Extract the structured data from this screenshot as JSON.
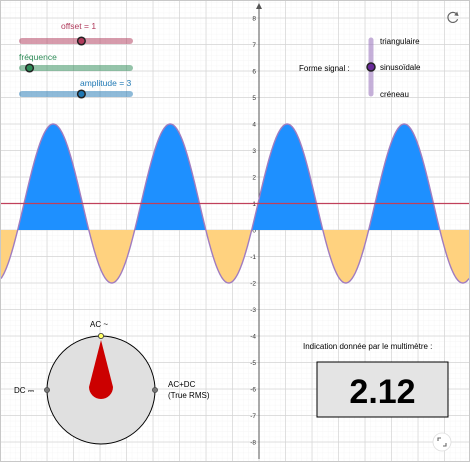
{
  "colors": {
    "offset": "#b03a5b",
    "frequence": "#2e8b57",
    "amplitude": "#1f78b4",
    "waveform": "#a07cc0",
    "positive_fill": "#1e90ff",
    "negative_fill": "#ffd27f",
    "offset_line": "#c0405a",
    "needle": "#cc0000"
  },
  "sliders": {
    "offset": {
      "label": "offset = 1",
      "value": 1,
      "fraction": 0.55
    },
    "frequence": {
      "label": "fréquence",
      "fraction": 0.07
    },
    "amplitude": {
      "label": "amplitude = 3",
      "value": 3,
      "fraction": 0.55
    }
  },
  "signal": {
    "label": "Forme signal :",
    "options": [
      "triangulaire",
      "sinusoïdale",
      "créneau"
    ],
    "selected": "sinusoïdale"
  },
  "axes": {
    "y_ticks": [
      "8",
      "7",
      "6",
      "5",
      "4",
      "3",
      "2",
      "1",
      "0",
      "-1",
      "-2",
      "-3",
      "-4",
      "-5",
      "-6",
      "-7",
      "-8"
    ]
  },
  "meter": {
    "ac_label": "AC ~",
    "dc_label": "DC ⎓",
    "acdc_label": "AC+DC",
    "true_rms_label": "(True RMS)",
    "selected_mode": "AC"
  },
  "multimeter": {
    "title": "Indication donnée par le multimètre :",
    "value": "2.12"
  },
  "icons": {
    "refresh": "refresh-icon",
    "fullscreen": "fullscreen-icon"
  }
}
